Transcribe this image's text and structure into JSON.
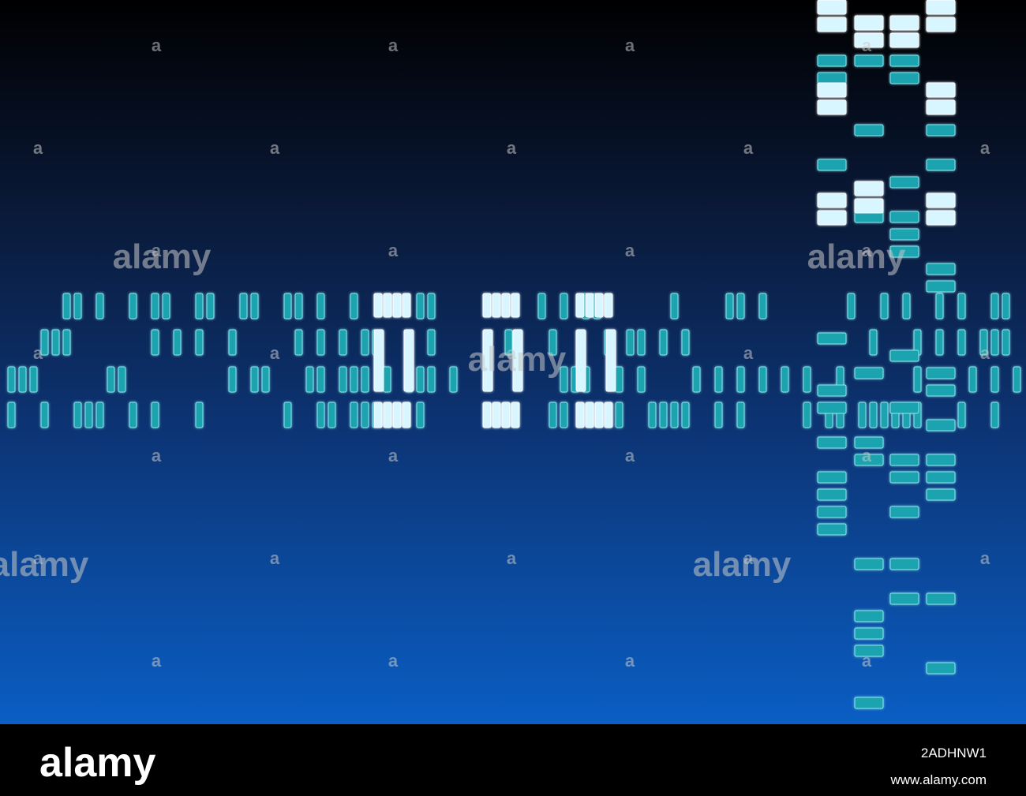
{
  "watermark": {
    "word": "alamy",
    "mark": "a"
  },
  "footer": {
    "logo": "alamy",
    "image_id": "2ADHNW1",
    "url": "www.alamy.com"
  }
}
